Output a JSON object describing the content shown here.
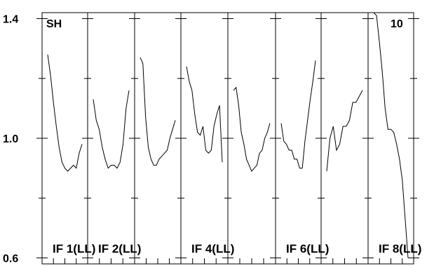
{
  "chart_data": {
    "type": "line",
    "title": "",
    "xlabel": "",
    "ylabel": "",
    "ylim": [
      0.58,
      1.42
    ],
    "yticks": [
      {
        "value": 1.4,
        "label": "1.4"
      },
      {
        "value": 1.0,
        "label": "1.0"
      },
      {
        "value": 0.6,
        "label": "0.6"
      }
    ],
    "yticks_minor": [
      1.2,
      0.8
    ],
    "corner_labels": {
      "left": "SH",
      "right": "10"
    },
    "panels": [
      {
        "label": "IF 1(LL)",
        "values": [
          1.28,
          1.21,
          1.12,
          1.04,
          0.97,
          0.92,
          0.9,
          0.89,
          0.9,
          0.91,
          0.9,
          0.95,
          0.98
        ]
      },
      {
        "label": "IF 2(LL)",
        "values": [
          1.13,
          1.06,
          1.03,
          0.97,
          0.93,
          0.9,
          0.91,
          0.91,
          0.9,
          0.92,
          0.98,
          1.1,
          1.16
        ]
      },
      {
        "label": "",
        "values": [
          1.27,
          1.25,
          1.07,
          0.97,
          0.93,
          0.91,
          0.91,
          0.93,
          0.94,
          0.95,
          0.96,
          1.0,
          1.03,
          1.06
        ]
      },
      {
        "label": "IF 4(LL)",
        "values": [
          1.24,
          1.19,
          1.16,
          1.08,
          1.02,
          1.01,
          1.04,
          0.96,
          0.95,
          0.96,
          1.04,
          1.08,
          1.11,
          0.92
        ]
      },
      {
        "label": "",
        "values": [
          1.16,
          1.17,
          1.11,
          1.02,
          0.98,
          0.93,
          0.91,
          0.89,
          0.9,
          0.91,
          0.95,
          0.96,
          1.0,
          1.02,
          1.05
        ]
      },
      {
        "label": "IF 6(LL)",
        "values": [
          1.05,
          0.99,
          0.98,
          0.96,
          0.96,
          0.93,
          0.93,
          0.9,
          0.9,
          0.99,
          1.06,
          1.13,
          1.19,
          1.26
        ]
      },
      {
        "label": "",
        "values": [
          0.89,
          1.0,
          1.04,
          0.96,
          0.98,
          1.04,
          1.04,
          1.06,
          1.12,
          1.12,
          1.14,
          1.16
        ]
      },
      {
        "label": "IF 8(LL)",
        "values": [
          1.42,
          1.41,
          1.32,
          1.22,
          1.1,
          1.03,
          1.03,
          1.02,
          0.98,
          0.93,
          0.86,
          0.73,
          0.6
        ]
      }
    ],
    "grid": false,
    "legend": "none"
  },
  "style": {
    "line_color": "#000000",
    "background": "#ffffff"
  }
}
